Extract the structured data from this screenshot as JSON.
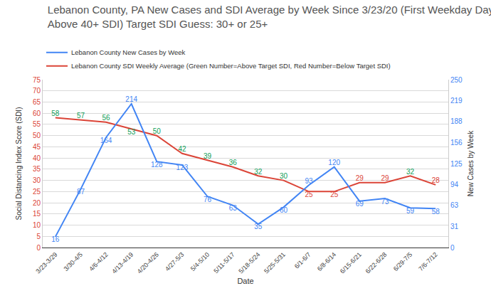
{
  "chart_data": {
    "type": "line",
    "title": "Lebanon County, PA New Cases and SDI Average by Week Since 3/23/20 (First Weekday Day Above 40+ SDI) Target SDI Guess: 30+ or 25+",
    "x_label": "Date",
    "y_label": "Social Distancing Index Score (SDI)",
    "y2_label": "New Cases by Week",
    "categories": [
      "3/23-3/29",
      "3/30-4/5",
      "4/6-4/12",
      "4/13-4/19",
      "4/20-4/26",
      "4/27-5/3",
      "5/4-5/10",
      "5/11-5/17",
      "5/18-5/24",
      "5/25-5/31",
      "6/1-6/7",
      "6/8-6/14",
      "6/15-6/21",
      "6/22-6/28",
      "6/29-7/5",
      "7/6-7/12"
    ],
    "series": [
      {
        "name": "Lebanon County New Cases by Week",
        "color": "#4285f4",
        "axis": "y2",
        "values": [
          16,
          87,
          164,
          214,
          128,
          123,
          76,
          63,
          35,
          60,
          93,
          120,
          69,
          73,
          59,
          58
        ]
      },
      {
        "name": "Lebanon County SDI Weekly Average (Green Number=Above Target SDI, Red Number=Below Target SDI)",
        "color": "#db4437",
        "axis": "y",
        "values": [
          58,
          57,
          56,
          53,
          50,
          42,
          39,
          36,
          32,
          30,
          25,
          25,
          29,
          29,
          32,
          28
        ],
        "colors": [
          "#0f9d58",
          "#0f9d58",
          "#0f9d58",
          "#0f9d58",
          "#0f9d58",
          "#0f9d58",
          "#0f9d58",
          "#0f9d58",
          "#0f9d58",
          "#0f9d58",
          "#db4437",
          "#db4437",
          "#db4437",
          "#db4437",
          "#0f9d58",
          "#db4437"
        ]
      }
    ],
    "ylim": [
      0,
      75
    ],
    "yticks": [
      0,
      5,
      10,
      15,
      20,
      25,
      30,
      35,
      40,
      45,
      50,
      55,
      60,
      65,
      70,
      75
    ],
    "y2lim": [
      0,
      250
    ],
    "y2ticks": [
      0,
      31,
      63,
      94,
      125,
      156,
      188,
      219,
      250
    ],
    "grid": true,
    "legend": "top",
    "data_labels": true
  }
}
